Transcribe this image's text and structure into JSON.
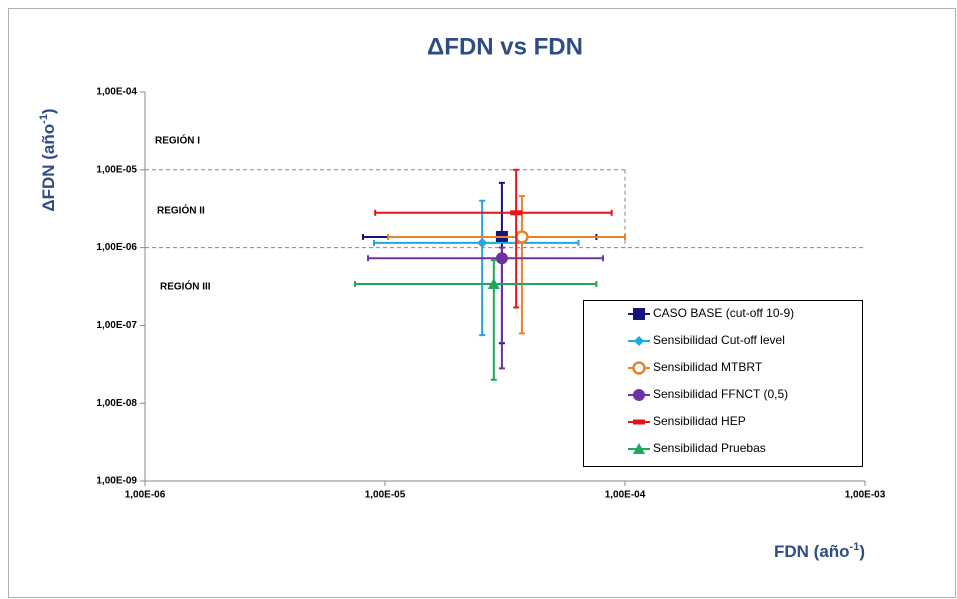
{
  "chart_data": {
    "type": "scatter",
    "title": "ΔFDN vs FDN",
    "x_label": {
      "text": "FDN (año",
      "sup": "-1",
      "end": ")"
    },
    "y_label": {
      "text": "ΔFDN (año",
      "sup": "-1",
      "end": ")"
    },
    "log_x": true,
    "log_y": true,
    "xlim": [
      1e-06,
      0.001
    ],
    "ylim": [
      1e-09,
      0.0001
    ],
    "xticks": [
      {
        "value": 1e-06,
        "label": "1,00E-06"
      },
      {
        "value": 1e-05,
        "label": "1,00E-05"
      },
      {
        "value": 0.0001,
        "label": "1,00E-04"
      },
      {
        "value": 0.001,
        "label": "1,00E-03"
      }
    ],
    "yticks": [
      {
        "value": 1e-09,
        "label": "1,00E-09"
      },
      {
        "value": 1e-08,
        "label": "1,00E-08"
      },
      {
        "value": 1e-07,
        "label": "1,00E-07"
      },
      {
        "value": 1e-06,
        "label": "1,00E-06"
      },
      {
        "value": 1e-05,
        "label": "1,00E-05"
      },
      {
        "value": 0.0001,
        "label": "1,00E-04"
      }
    ],
    "regions": [
      "REGIÓN I",
      "REGIÓN II",
      "REGIÓN III"
    ],
    "region_bounds": {
      "y": [
        1e-05,
        1e-06
      ],
      "x": 0.0001
    },
    "legend": "lower right",
    "series": [
      {
        "name": "CASO BASE (cut-off 10-9)",
        "color": "#14147a",
        "marker": "square",
        "x": [
          3.07e-05
        ],
        "y": [
          1.37e-06
        ],
        "x_range": [
          8.1e-06,
          7.6e-05
        ],
        "y_range": [
          5.9e-08,
          6.8e-06
        ]
      },
      {
        "name": "Sensibilidad  Cut-off level",
        "color": "#1ea7e0",
        "marker": "diamond",
        "x": [
          2.54e-05
        ],
        "y": [
          1.15e-06
        ],
        "x_range": [
          9e-06,
          6.4e-05
        ],
        "y_range": [
          7.5e-08,
          4e-06
        ]
      },
      {
        "name": "Sensibilidad MTBRT",
        "color": "#e8822c",
        "marker": "open-circle",
        "x": [
          3.72e-05
        ],
        "y": [
          1.37e-06
        ],
        "x_range": [
          1.03e-05,
          0.0001
        ],
        "y_range": [
          7.9e-08,
          4.6e-06
        ]
      },
      {
        "name": "Sensibilidad  FFNCT (0,5)",
        "color": "#7030a0",
        "marker": "circle",
        "x": [
          3.07e-05
        ],
        "y": [
          7.3e-07
        ],
        "x_range": [
          8.5e-06,
          8.1e-05
        ],
        "y_range": [
          2.8e-08,
          1e-06
        ]
      },
      {
        "name": "Sensibilidad HEP",
        "color": "#e3151a",
        "marker": "dash",
        "x": [
          3.52e-05
        ],
        "y": [
          2.8e-06
        ],
        "x_range": [
          9.1e-06,
          8.8e-05
        ],
        "y_range": [
          1.7e-07,
          1e-05
        ]
      },
      {
        "name": "Sensibilidad Pruebas",
        "color": "#1fa85a",
        "marker": "triangle",
        "x": [
          2.84e-05
        ],
        "y": [
          3.4e-07
        ],
        "x_range": [
          7.5e-06,
          7.6e-05
        ],
        "y_range": [
          2e-08,
          6.9e-07
        ]
      }
    ]
  }
}
